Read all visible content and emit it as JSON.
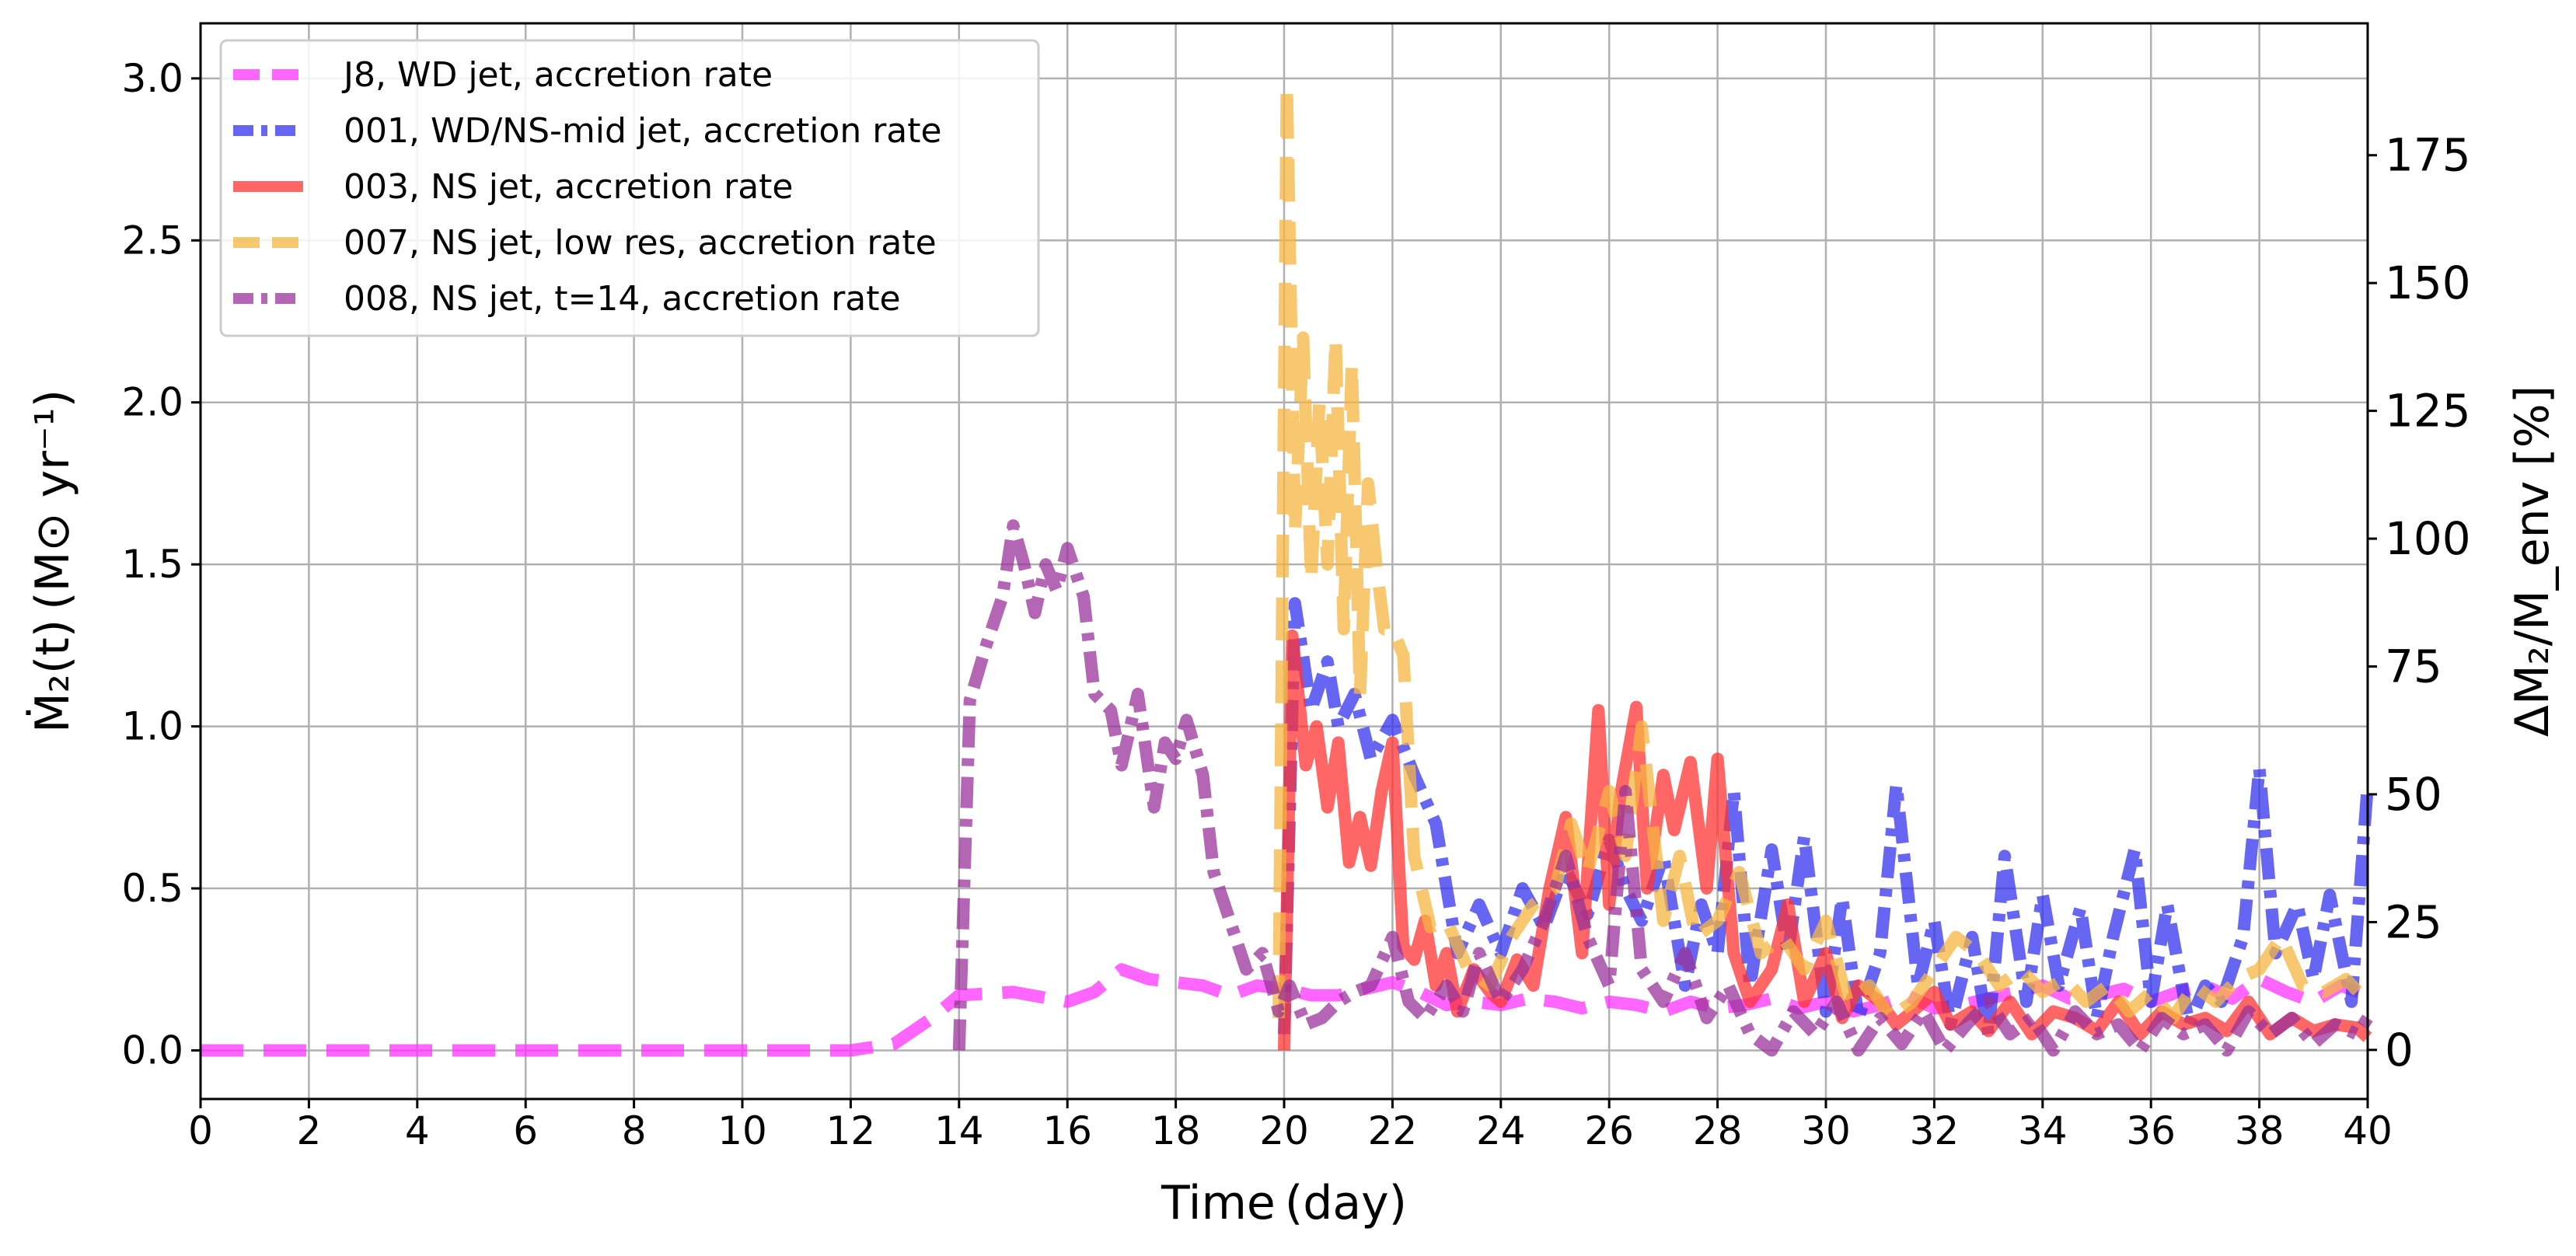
{
  "chart_data": {
    "type": "line",
    "xlabel": "Time (day)",
    "ylabel_left": "Ṁ₂(t) (M⊙ yr⁻¹)",
    "ylabel_right": "ΔM₂/M_env [%]",
    "xlim": [
      0,
      40
    ],
    "ylim_left": [
      -0.15,
      3.17
    ],
    "ylim_right": [
      -9.6,
      200.8
    ],
    "x_ticks": [
      0,
      2,
      4,
      6,
      8,
      10,
      12,
      14,
      16,
      18,
      20,
      22,
      24,
      26,
      28,
      30,
      32,
      34,
      36,
      38,
      40
    ],
    "y_ticks_left": [
      "0.0",
      "0.5",
      "1.0",
      "1.5",
      "2.0",
      "2.5",
      "3.0"
    ],
    "y_ticks_right": [
      "0",
      "25",
      "50",
      "75",
      "100",
      "125",
      "150",
      "175"
    ],
    "grid": true,
    "legend_position": "top-left",
    "series": [
      {
        "name": "J8, WD jet, accretion rate",
        "color": "#ff33ff",
        "style": "dashed",
        "x": [
          0,
          12,
          12.8,
          13.5,
          14,
          15,
          16,
          16.5,
          17,
          17.5,
          18,
          18.5,
          19,
          19.5,
          20,
          20.5,
          21,
          21.5,
          22,
          22.5,
          23,
          23.5,
          24,
          24.5,
          25,
          25.5,
          26,
          26.5,
          27,
          27.5,
          28,
          28.5,
          29,
          29.5,
          30,
          30.5,
          31,
          31.5,
          32,
          32.5,
          33,
          33.5,
          34,
          34.5,
          35,
          35.5,
          36,
          36.5,
          37,
          37.5,
          38,
          38.5,
          39,
          39.5,
          40
        ],
        "y": [
          0.0,
          0.0,
          0.02,
          0.1,
          0.17,
          0.18,
          0.15,
          0.18,
          0.25,
          0.22,
          0.21,
          0.2,
          0.17,
          0.2,
          0.19,
          0.17,
          0.17,
          0.19,
          0.21,
          0.18,
          0.14,
          0.15,
          0.14,
          0.16,
          0.15,
          0.13,
          0.15,
          0.14,
          0.12,
          0.15,
          0.13,
          0.14,
          0.16,
          0.13,
          0.15,
          0.12,
          0.14,
          0.17,
          0.13,
          0.14,
          0.16,
          0.18,
          0.2,
          0.16,
          0.17,
          0.19,
          0.15,
          0.18,
          0.2,
          0.16,
          0.22,
          0.18,
          0.15,
          0.2,
          0.17
        ]
      },
      {
        "name": "001, WD/NS-mid jet, accretion rate",
        "color": "#3333ee",
        "style": "dashdot",
        "x": [
          20,
          20.2,
          20.5,
          20.8,
          21,
          21.3,
          21.6,
          22,
          22.4,
          22.8,
          23.2,
          23.6,
          24,
          24.4,
          24.8,
          25.2,
          25.6,
          26,
          26.3,
          26.6,
          27,
          27.4,
          27.7,
          28,
          28.3,
          28.6,
          29,
          29.3,
          29.6,
          30,
          30.3,
          30.6,
          31,
          31.3,
          31.7,
          32,
          32.3,
          32.7,
          33,
          33.3,
          33.7,
          34,
          34.3,
          34.7,
          35,
          35.3,
          35.7,
          36,
          36.3,
          36.7,
          37,
          37.3,
          37.7,
          38,
          38.3,
          38.7,
          39,
          39.3,
          39.7,
          40
        ],
        "y": [
          0.05,
          1.38,
          1.05,
          1.2,
          1.0,
          1.1,
          0.9,
          1.02,
          0.85,
          0.7,
          0.3,
          0.45,
          0.3,
          0.5,
          0.38,
          0.56,
          0.42,
          0.65,
          0.5,
          0.4,
          0.6,
          0.2,
          0.45,
          0.3,
          0.8,
          0.2,
          0.62,
          0.3,
          0.66,
          0.12,
          0.47,
          0.1,
          0.3,
          0.82,
          0.2,
          0.4,
          0.08,
          0.35,
          0.05,
          0.6,
          0.15,
          0.48,
          0.2,
          0.44,
          0.1,
          0.35,
          0.62,
          0.15,
          0.45,
          0.08,
          0.2,
          0.15,
          0.35,
          0.87,
          0.3,
          0.45,
          0.22,
          0.48,
          0.15,
          0.82
        ]
      },
      {
        "name": "003, NS jet, accretion rate",
        "color": "#ff3333",
        "style": "solid",
        "x": [
          20,
          20.15,
          20.4,
          20.6,
          20.8,
          21,
          21.2,
          21.4,
          21.6,
          21.8,
          22,
          22.2,
          22.4,
          22.6,
          22.8,
          23,
          23.2,
          23.5,
          23.8,
          24,
          24.3,
          24.6,
          24.9,
          25.2,
          25.5,
          25.8,
          26,
          26.2,
          26.5,
          26.7,
          27,
          27.2,
          27.5,
          27.8,
          28,
          28.3,
          28.6,
          29,
          29.3,
          29.6,
          30,
          30.3,
          30.6,
          31,
          31.3,
          31.6,
          32,
          32.3,
          32.7,
          33,
          33.4,
          33.8,
          34.2,
          34.6,
          35,
          35.4,
          35.8,
          36.2,
          36.6,
          37,
          37.4,
          37.8,
          38.2,
          38.6,
          39,
          39.4,
          39.8,
          40
        ],
        "y": [
          0.0,
          1.28,
          0.88,
          1.0,
          0.75,
          0.95,
          0.58,
          0.72,
          0.57,
          0.8,
          0.95,
          0.32,
          0.28,
          0.4,
          0.2,
          0.3,
          0.12,
          0.25,
          0.18,
          0.15,
          0.28,
          0.2,
          0.5,
          0.72,
          0.3,
          1.05,
          0.45,
          0.78,
          1.06,
          0.5,
          0.85,
          0.68,
          0.89,
          0.5,
          0.9,
          0.3,
          0.15,
          0.25,
          0.45,
          0.15,
          0.3,
          0.1,
          0.2,
          0.15,
          0.08,
          0.12,
          0.18,
          0.08,
          0.12,
          0.06,
          0.15,
          0.05,
          0.12,
          0.1,
          0.06,
          0.15,
          0.05,
          0.12,
          0.08,
          0.1,
          0.06,
          0.15,
          0.05,
          0.1,
          0.06,
          0.08,
          0.07,
          0.04
        ]
      },
      {
        "name": "007, NS jet, low res, accretion rate",
        "color": "#f5b642",
        "style": "dashed",
        "x": [
          19.9,
          20.05,
          20.2,
          20.35,
          20.5,
          20.65,
          20.8,
          20.95,
          21.1,
          21.25,
          21.4,
          21.55,
          21.7,
          21.85,
          22,
          22.2,
          22.4,
          22.7,
          23,
          23.4,
          23.8,
          24.2,
          24.6,
          25,
          25.3,
          25.6,
          26,
          26.3,
          26.6,
          27,
          27.3,
          27.6,
          28,
          28.4,
          28.8,
          29.2,
          29.6,
          30,
          30.4,
          30.8,
          31.2,
          31.6,
          32,
          32.4,
          32.8,
          33.2,
          33.6,
          34,
          34.4,
          34.8,
          35.2,
          35.6,
          36,
          36.4,
          36.8,
          37.2,
          37.6,
          38,
          38.4,
          38.8,
          39.2,
          39.6,
          40
        ],
        "y": [
          0.1,
          2.98,
          1.6,
          2.2,
          1.45,
          2.0,
          1.5,
          2.2,
          1.3,
          2.12,
          1.1,
          1.75,
          1.5,
          1.3,
          1.3,
          1.22,
          0.6,
          0.38,
          0.4,
          0.25,
          0.2,
          0.35,
          0.45,
          0.5,
          0.7,
          0.55,
          0.8,
          0.6,
          1.0,
          0.4,
          0.6,
          0.35,
          0.4,
          0.55,
          0.3,
          0.35,
          0.25,
          0.4,
          0.15,
          0.2,
          0.1,
          0.15,
          0.25,
          0.35,
          0.3,
          0.2,
          0.25,
          0.18,
          0.22,
          0.15,
          0.2,
          0.12,
          0.18,
          0.1,
          0.2,
          0.15,
          0.22,
          0.25,
          0.35,
          0.2,
          0.18,
          0.22,
          0.15
        ]
      },
      {
        "name": "008, NS jet, t=14, accretion rate",
        "color": "#993399",
        "style": "dashdot",
        "x": [
          14,
          14.2,
          14.5,
          14.8,
          15,
          15.2,
          15.4,
          15.6,
          15.8,
          16,
          16.3,
          16.5,
          16.8,
          17,
          17.3,
          17.6,
          17.8,
          18,
          18.2,
          18.5,
          18.7,
          19,
          19.3,
          19.6,
          19.9,
          20.1,
          20.4,
          20.7,
          21,
          21.3,
          21.6,
          22,
          22.3,
          22.6,
          23,
          23.3,
          23.6,
          24,
          24.4,
          24.8,
          25.2,
          25.6,
          26,
          26.3,
          26.6,
          27,
          27.4,
          27.8,
          28.2,
          28.6,
          29,
          29.4,
          29.8,
          30.2,
          30.6,
          31,
          31.4,
          31.8,
          32.2,
          32.6,
          33,
          33.4,
          33.8,
          34.2,
          34.6,
          35,
          35.4,
          35.8,
          36.2,
          36.6,
          37,
          37.4,
          37.8,
          38.2,
          38.6,
          39,
          39.4,
          39.8,
          40
        ],
        "y": [
          0.0,
          1.08,
          1.25,
          1.4,
          1.62,
          1.5,
          1.35,
          1.5,
          1.42,
          1.55,
          1.4,
          1.1,
          1.05,
          0.88,
          1.1,
          0.75,
          0.95,
          0.9,
          1.02,
          0.85,
          0.55,
          0.4,
          0.25,
          0.3,
          0.12,
          0.2,
          0.08,
          0.1,
          0.15,
          0.18,
          0.2,
          0.35,
          0.15,
          0.1,
          0.2,
          0.12,
          0.3,
          0.15,
          0.25,
          0.4,
          0.6,
          0.35,
          0.2,
          0.8,
          0.25,
          0.15,
          0.3,
          0.1,
          0.2,
          0.05,
          0.0,
          0.12,
          0.05,
          0.15,
          0.0,
          0.1,
          0.02,
          0.12,
          0.0,
          0.08,
          0.15,
          0.05,
          0.1,
          0.0,
          0.12,
          0.05,
          0.08,
          0.0,
          0.1,
          0.05,
          0.08,
          0.0,
          0.12,
          0.05,
          0.1,
          0.02,
          0.08,
          0.05,
          0.1
        ]
      }
    ]
  }
}
